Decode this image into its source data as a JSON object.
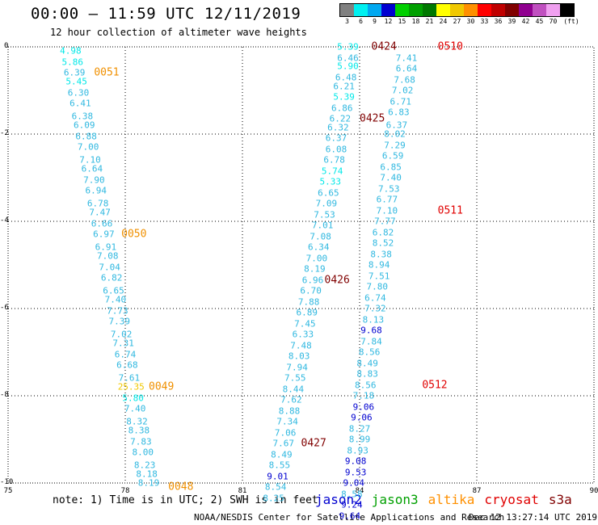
{
  "header": {
    "title": "00:00 – 11:59 UTC 12/11/2019",
    "subtitle": "12 hour collection of altimeter wave heights"
  },
  "color_scale": {
    "unit_label": "(ft)",
    "bins": [
      {
        "color": "#808080",
        "label": "3"
      },
      {
        "color": "#00f0f0",
        "label": "6"
      },
      {
        "color": "#00a8f0",
        "label": "9"
      },
      {
        "color": "#0000d0",
        "label": "12"
      },
      {
        "color": "#00d000",
        "label": "15"
      },
      {
        "color": "#00a000",
        "label": "18"
      },
      {
        "color": "#007800",
        "label": "21"
      },
      {
        "color": "#ffff00",
        "label": "24"
      },
      {
        "color": "#f0c800",
        "label": "27"
      },
      {
        "color": "#ff9000",
        "label": "30"
      },
      {
        "color": "#ff0000",
        "label": "33"
      },
      {
        "color": "#c00000",
        "label": "36"
      },
      {
        "color": "#800000",
        "label": "39"
      },
      {
        "color": "#900090",
        "label": "42"
      },
      {
        "color": "#c050c0",
        "label": "45"
      },
      {
        "color": "#f0a0f0",
        "label": "70"
      },
      {
        "color": "#000000",
        "label": ""
      }
    ]
  },
  "map": {
    "lon_range": [
      75,
      90
    ],
    "lat_range": [
      -10,
      0
    ],
    "x_ticks": [
      "75",
      "78",
      "81",
      "84",
      "87",
      "90"
    ],
    "y_ticks": [
      "0",
      "-2",
      "-4",
      "-6",
      "-8",
      "-10"
    ],
    "gridlines": true
  },
  "tracks": [
    {
      "color": "#30b8e0",
      "points": [
        {
          "lon": 76.6,
          "lat": -0.1,
          "v": "4.98",
          "c": "#00e8e8"
        },
        {
          "lon": 76.65,
          "lat": -0.35,
          "v": "5.86",
          "c": "#00e8e8"
        },
        {
          "lon": 76.7,
          "lat": -0.6,
          "v": "6.39"
        },
        {
          "lon": 76.75,
          "lat": -0.8,
          "v": "5.45",
          "c": "#00e8e8"
        },
        {
          "lon": 76.8,
          "lat": -1.06,
          "v": "6.30"
        },
        {
          "lon": 76.85,
          "lat": -1.3,
          "v": "6.41"
        },
        {
          "lon": 76.9,
          "lat": -1.6,
          "v": "6.38"
        },
        {
          "lon": 76.95,
          "lat": -1.8,
          "v": "6.09"
        },
        {
          "lon": 77.0,
          "lat": -2.06,
          "v": "6.88"
        },
        {
          "lon": 77.05,
          "lat": -2.3,
          "v": "7.00"
        },
        {
          "lon": 77.1,
          "lat": -2.6,
          "v": "7.10"
        },
        {
          "lon": 77.15,
          "lat": -2.8,
          "v": "6.64"
        },
        {
          "lon": 77.2,
          "lat": -3.06,
          "v": "7.90"
        },
        {
          "lon": 77.25,
          "lat": -3.3,
          "v": "6.94"
        },
        {
          "lon": 77.3,
          "lat": -3.6,
          "v": "6.78"
        },
        {
          "lon": 77.35,
          "lat": -3.8,
          "v": "7.47"
        },
        {
          "lon": 77.4,
          "lat": -4.06,
          "v": "6.66"
        },
        {
          "lon": 77.45,
          "lat": -4.3,
          "v": "6.97"
        },
        {
          "lon": 77.5,
          "lat": -4.6,
          "v": "6.91"
        },
        {
          "lon": 77.55,
          "lat": -4.8,
          "v": "7.08"
        },
        {
          "lon": 77.6,
          "lat": -5.06,
          "v": "7.04"
        },
        {
          "lon": 77.65,
          "lat": -5.3,
          "v": "6.82"
        },
        {
          "lon": 77.7,
          "lat": -5.6,
          "v": "6.65"
        },
        {
          "lon": 77.75,
          "lat": -5.8,
          "v": "7.40"
        },
        {
          "lon": 77.8,
          "lat": -6.06,
          "v": "7.73"
        },
        {
          "lon": 77.85,
          "lat": -6.3,
          "v": "7.39"
        },
        {
          "lon": 77.9,
          "lat": -6.6,
          "v": "7.02"
        },
        {
          "lon": 77.95,
          "lat": -6.8,
          "v": "7.31"
        },
        {
          "lon": 78.0,
          "lat": -7.06,
          "v": "6.74"
        },
        {
          "lon": 78.05,
          "lat": -7.3,
          "v": "6.68"
        },
        {
          "lon": 78.1,
          "lat": -7.6,
          "v": "7.61"
        },
        {
          "lon": 78.15,
          "lat": -7.8,
          "v": "25.35",
          "c": "#f0c800"
        },
        {
          "lon": 78.2,
          "lat": -8.06,
          "v": "5.80",
          "c": "#00e8e8"
        },
        {
          "lon": 78.25,
          "lat": -8.3,
          "v": "7.40"
        },
        {
          "lon": 78.3,
          "lat": -8.6,
          "v": "8.32"
        },
        {
          "lon": 78.35,
          "lat": -8.8,
          "v": "8.38"
        },
        {
          "lon": 78.4,
          "lat": -9.06,
          "v": "7.83"
        },
        {
          "lon": 78.45,
          "lat": -9.3,
          "v": "8.00"
        },
        {
          "lon": 78.5,
          "lat": -9.6,
          "v": "8.23"
        },
        {
          "lon": 78.55,
          "lat": -9.8,
          "v": "8.18"
        },
        {
          "lon": 78.6,
          "lat": -10.0,
          "v": "8.19"
        }
      ]
    },
    {
      "color": "#30b8e0",
      "points": [
        {
          "lon": 83.7,
          "lat": 0.0,
          "v": "5.39",
          "c": "#00e8e8"
        },
        {
          "lon": 83.7,
          "lat": -0.25,
          "v": "6.46"
        },
        {
          "lon": 83.7,
          "lat": -0.45,
          "v": "5.90",
          "c": "#00e8e8"
        },
        {
          "lon": 83.65,
          "lat": -0.7,
          "v": "6.48"
        },
        {
          "lon": 83.6,
          "lat": -0.9,
          "v": "6.21"
        },
        {
          "lon": 83.6,
          "lat": -1.15,
          "v": "5.39",
          "c": "#00e8e8"
        },
        {
          "lon": 83.55,
          "lat": -1.4,
          "v": "6.86"
        },
        {
          "lon": 83.5,
          "lat": -1.65,
          "v": "6.22"
        },
        {
          "lon": 83.45,
          "lat": -1.85,
          "v": "6.32"
        },
        {
          "lon": 83.4,
          "lat": -2.1,
          "v": "6.37"
        },
        {
          "lon": 83.4,
          "lat": -2.35,
          "v": "6.08"
        },
        {
          "lon": 83.35,
          "lat": -2.6,
          "v": "6.78"
        },
        {
          "lon": 83.3,
          "lat": -2.85,
          "v": "5.74",
          "c": "#00e8e8"
        },
        {
          "lon": 83.25,
          "lat": -3.1,
          "v": "5.33",
          "c": "#00e8e8"
        },
        {
          "lon": 83.2,
          "lat": -3.35,
          "v": "6.65"
        },
        {
          "lon": 83.15,
          "lat": -3.6,
          "v": "7.09"
        },
        {
          "lon": 83.1,
          "lat": -3.85,
          "v": "7.53"
        },
        {
          "lon": 83.05,
          "lat": -4.1,
          "v": "7.01"
        },
        {
          "lon": 83.0,
          "lat": -4.35,
          "v": "7.08"
        },
        {
          "lon": 82.95,
          "lat": -4.6,
          "v": "6.34"
        },
        {
          "lon": 82.9,
          "lat": -4.85,
          "v": "7.00"
        },
        {
          "lon": 82.85,
          "lat": -5.1,
          "v": "8.19"
        },
        {
          "lon": 82.8,
          "lat": -5.35,
          "v": "6.96"
        },
        {
          "lon": 82.75,
          "lat": -5.6,
          "v": "6.70"
        },
        {
          "lon": 82.7,
          "lat": -5.85,
          "v": "7.88"
        },
        {
          "lon": 82.65,
          "lat": -6.1,
          "v": "6.89"
        },
        {
          "lon": 82.6,
          "lat": -6.35,
          "v": "7.45"
        },
        {
          "lon": 82.55,
          "lat": -6.6,
          "v": "6.33"
        },
        {
          "lon": 82.5,
          "lat": -6.85,
          "v": "7.48"
        },
        {
          "lon": 82.45,
          "lat": -7.1,
          "v": "8.03"
        },
        {
          "lon": 82.4,
          "lat": -7.35,
          "v": "7.94"
        },
        {
          "lon": 82.35,
          "lat": -7.6,
          "v": "7.55"
        },
        {
          "lon": 82.3,
          "lat": -7.85,
          "v": "8.44"
        },
        {
          "lon": 82.25,
          "lat": -8.1,
          "v": "7.62"
        },
        {
          "lon": 82.2,
          "lat": -8.35,
          "v": "8.88"
        },
        {
          "lon": 82.15,
          "lat": -8.6,
          "v": "7.34"
        },
        {
          "lon": 82.1,
          "lat": -8.85,
          "v": "7.06"
        },
        {
          "lon": 82.05,
          "lat": -9.1,
          "v": "7.67"
        },
        {
          "lon": 82.0,
          "lat": -9.35,
          "v": "8.49"
        },
        {
          "lon": 81.95,
          "lat": -9.6,
          "v": "8.55"
        },
        {
          "lon": 81.9,
          "lat": -9.85,
          "v": "9.01",
          "c": "#0000d0"
        },
        {
          "lon": 81.85,
          "lat": -10.1,
          "v": "8.54"
        },
        {
          "lon": 81.8,
          "lat": -10.35,
          "v": "8.25"
        }
      ]
    },
    {
      "color": "#30b8e0",
      "points": [
        {
          "lon": 85.2,
          "lat": -0.25,
          "v": "7.41"
        },
        {
          "lon": 85.2,
          "lat": -0.5,
          "v": "6.64"
        },
        {
          "lon": 85.15,
          "lat": -0.75,
          "v": "7.68"
        },
        {
          "lon": 85.1,
          "lat": -1.0,
          "v": "7.02"
        },
        {
          "lon": 85.05,
          "lat": -1.25,
          "v": "6.71"
        },
        {
          "lon": 85.0,
          "lat": -1.5,
          "v": "6.83"
        },
        {
          "lon": 84.95,
          "lat": -1.8,
          "v": "6.37"
        },
        {
          "lon": 84.9,
          "lat": -2.0,
          "v": "8.02"
        },
        {
          "lon": 84.9,
          "lat": -2.25,
          "v": "7.29"
        },
        {
          "lon": 84.85,
          "lat": -2.5,
          "v": "6.59"
        },
        {
          "lon": 84.8,
          "lat": -2.75,
          "v": "6.85"
        },
        {
          "lon": 84.8,
          "lat": -3.0,
          "v": "7.40"
        },
        {
          "lon": 84.75,
          "lat": -3.25,
          "v": "7.53"
        },
        {
          "lon": 84.7,
          "lat": -3.5,
          "v": "6.77"
        },
        {
          "lon": 84.7,
          "lat": -3.75,
          "v": "7.10"
        },
        {
          "lon": 84.65,
          "lat": -4.0,
          "v": "7.77"
        },
        {
          "lon": 84.6,
          "lat": -4.25,
          "v": "6.82"
        },
        {
          "lon": 84.6,
          "lat": -4.5,
          "v": "8.52"
        },
        {
          "lon": 84.55,
          "lat": -4.75,
          "v": "8.38"
        },
        {
          "lon": 84.5,
          "lat": -5.0,
          "v": "8.94"
        },
        {
          "lon": 84.5,
          "lat": -5.25,
          "v": "7.51"
        },
        {
          "lon": 84.45,
          "lat": -5.5,
          "v": "7.80"
        },
        {
          "lon": 84.4,
          "lat": -5.75,
          "v": "6.74"
        },
        {
          "lon": 84.4,
          "lat": -6.0,
          "v": "7.32"
        },
        {
          "lon": 84.35,
          "lat": -6.25,
          "v": "8.13"
        },
        {
          "lon": 84.3,
          "lat": -6.5,
          "v": "9.68",
          "c": "#0000d0"
        },
        {
          "lon": 84.3,
          "lat": -6.75,
          "v": "7.84"
        },
        {
          "lon": 84.25,
          "lat": -7.0,
          "v": "8.56"
        },
        {
          "lon": 84.2,
          "lat": -7.25,
          "v": "8.49"
        },
        {
          "lon": 84.2,
          "lat": -7.5,
          "v": "8.83"
        },
        {
          "lon": 84.15,
          "lat": -7.75,
          "v": "8.56"
        },
        {
          "lon": 84.1,
          "lat": -8.0,
          "v": "7.18"
        },
        {
          "lon": 84.1,
          "lat": -8.25,
          "v": "9.06",
          "c": "#0000d0"
        },
        {
          "lon": 84.05,
          "lat": -8.5,
          "v": "9.06",
          "c": "#0000d0"
        },
        {
          "lon": 84.0,
          "lat": -8.75,
          "v": "8.27"
        },
        {
          "lon": 84.0,
          "lat": -9.0,
          "v": "8.99"
        },
        {
          "lon": 83.95,
          "lat": -9.25,
          "v": "8.93"
        },
        {
          "lon": 83.9,
          "lat": -9.5,
          "v": "9.08",
          "c": "#0000d0"
        },
        {
          "lon": 83.9,
          "lat": -9.75,
          "v": "9.53",
          "c": "#0000d0"
        },
        {
          "lon": 83.85,
          "lat": -10.0,
          "v": "9.04",
          "c": "#0000d0"
        },
        {
          "lon": 83.8,
          "lat": -10.25,
          "v": "8.58"
        },
        {
          "lon": 83.8,
          "lat": -10.5,
          "v": "9.24",
          "c": "#0000d0"
        },
        {
          "lon": 83.75,
          "lat": -10.75,
          "v": "9.64",
          "c": "#0000d0"
        }
      ]
    }
  ],
  "time_tags": [
    {
      "text": "0051",
      "lon": 77.2,
      "lat": -0.6,
      "color": "#f09000"
    },
    {
      "text": "0050",
      "lon": 77.9,
      "lat": -4.3,
      "color": "#f09000"
    },
    {
      "text": "0049",
      "lon": 78.6,
      "lat": -7.8,
      "color": "#f09000"
    },
    {
      "text": "0048",
      "lon": 79.1,
      "lat": -10.1,
      "color": "#f09000"
    },
    {
      "text": "0424",
      "lon": 84.3,
      "lat": 0.0,
      "color": "#800000"
    },
    {
      "text": "0425",
      "lon": 84.0,
      "lat": -1.65,
      "color": "#800000"
    },
    {
      "text": "0426",
      "lon": 83.1,
      "lat": -5.35,
      "color": "#800000"
    },
    {
      "text": "0427",
      "lon": 82.5,
      "lat": -9.1,
      "color": "#800000"
    },
    {
      "text": "0510",
      "lon": 86.0,
      "lat": 0.0,
      "color": "#e00000"
    },
    {
      "text": "0511",
      "lon": 86.0,
      "lat": -3.75,
      "color": "#e00000"
    },
    {
      "text": "0512",
      "lon": 85.6,
      "lat": -7.75,
      "color": "#e00000"
    }
  ],
  "footer": {
    "note": "note: 1) Time is in UTC; 2) SWH is in feet",
    "legend": [
      {
        "text": "jason2",
        "color": "#0000d0"
      },
      {
        "text": "jason3",
        "color": "#00a000"
      },
      {
        "text": "altika",
        "color": "#ff9000"
      },
      {
        "text": "cryosat",
        "color": "#e00000"
      },
      {
        "text": "s3a",
        "color": "#800000"
      }
    ],
    "credit": "NOAA/NESDIS Center for Satellite Applications and Research",
    "timestamp": "Dec 12 13:27:14 UTC 2019"
  }
}
